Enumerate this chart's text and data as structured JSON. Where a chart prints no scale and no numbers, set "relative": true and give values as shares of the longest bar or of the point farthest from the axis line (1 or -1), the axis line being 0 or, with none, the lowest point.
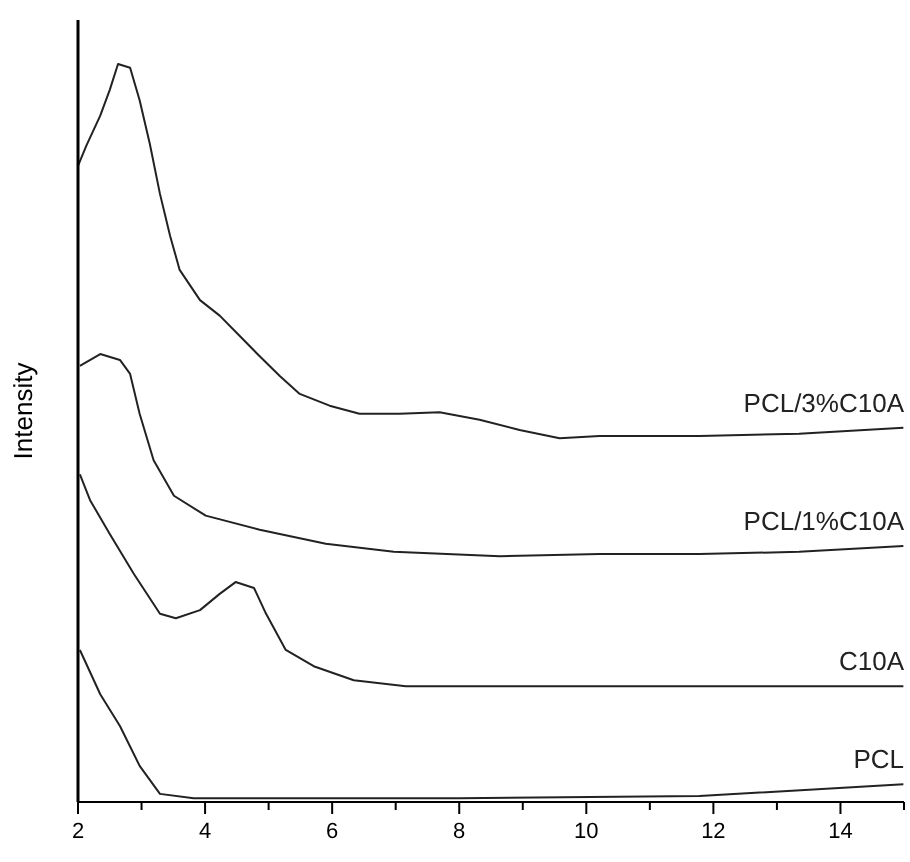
{
  "chart_data": {
    "type": "line",
    "ylabel": "Intensity",
    "relative": true,
    "xlim": [
      2,
      15
    ],
    "xticks": [
      2,
      {
        "value": 3,
        "label": null
      },
      4,
      {
        "value": 5,
        "label": null
      },
      6,
      {
        "value": 7,
        "label": null
      },
      8,
      {
        "value": 9,
        "label": null
      },
      10,
      {
        "value": 11,
        "label": null
      },
      12,
      {
        "value": 13,
        "label": null
      },
      14,
      {
        "value": 15,
        "label": null
      }
    ],
    "legend": false,
    "grid": false,
    "marker": "none",
    "line_style": "solid",
    "series": [
      {
        "name": "PCL/3%C10A",
        "color": "#222222",
        "x": [
          2.0,
          2.13,
          2.35,
          2.5,
          2.63,
          2.82,
          2.97,
          3.13,
          3.29,
          3.45,
          3.6,
          3.92,
          4.23,
          4.55,
          4.86,
          5.18,
          5.49,
          5.96,
          6.43,
          7.06,
          7.69,
          8.32,
          8.95,
          9.58,
          10.21,
          11.78,
          13.35,
          14.99
        ],
        "values": [
          0.862,
          0.889,
          0.93,
          0.965,
          1,
          0.995,
          0.951,
          0.892,
          0.824,
          0.767,
          0.721,
          0.68,
          0.659,
          0.631,
          0.604,
          0.577,
          0.553,
          0.537,
          0.526,
          0.526,
          0.528,
          0.518,
          0.504,
          0.493,
          0.496,
          0.496,
          0.499,
          0.507
        ]
      },
      {
        "name": "PCL/1%C10A",
        "color": "#222222",
        "x": [
          2.03,
          2.35,
          2.66,
          2.82,
          2.97,
          3.19,
          3.51,
          4.01,
          4.86,
          5.9,
          6.97,
          8.64,
          10.21,
          11.78,
          13.35,
          14.99
        ],
        "values": [
          0.591,
          0.607,
          0.599,
          0.58,
          0.526,
          0.463,
          0.415,
          0.388,
          0.369,
          0.35,
          0.339,
          0.333,
          0.336,
          0.336,
          0.339,
          0.347
        ]
      },
      {
        "name": "C10A",
        "color": "#222222",
        "x": [
          2.03,
          2.19,
          2.5,
          2.88,
          3.29,
          3.54,
          3.92,
          4.23,
          4.48,
          4.77,
          4.96,
          5.27,
          5.71,
          6.34,
          7.16,
          8.64,
          11.78,
          14.99
        ],
        "values": [
          0.444,
          0.409,
          0.363,
          0.309,
          0.255,
          0.249,
          0.26,
          0.282,
          0.298,
          0.29,
          0.255,
          0.206,
          0.184,
          0.165,
          0.157,
          0.157,
          0.157,
          0.157
        ]
      },
      {
        "name": "PCL",
        "color": "#222222",
        "x": [
          2.03,
          2.35,
          2.66,
          2.97,
          3.29,
          3.82,
          8.0,
          11.78,
          14.99
        ],
        "values": [
          0.206,
          0.146,
          0.103,
          0.049,
          0.011,
          0.005,
          0.005,
          0.008,
          0.024
        ]
      }
    ]
  }
}
